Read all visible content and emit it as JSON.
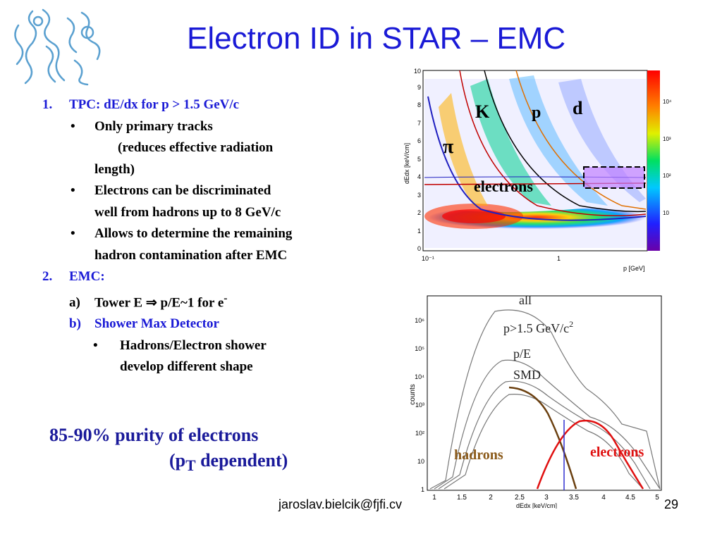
{
  "slide": {
    "title": "Electron ID in STAR – EMC",
    "page_number": "29",
    "footer_email": "jaroslav.bielcik@fjfi.cv"
  },
  "body": {
    "item1_number": "1.",
    "item1_label": "TPC: dE/dx for p > 1.5 GeV/c",
    "bullet1_line1": "Only primary tracks",
    "bullet1_line2": "(reduces effective radiation",
    "bullet1_line3": "length)",
    "bullet2_line1": "Electrons can be discriminated",
    "bullet2_line2": "well from hadrons up to 8 GeV/c",
    "bullet3_line1": "Allows to determine the remaining",
    "bullet3_line2": "hadron contamination after EMC",
    "item2_number": "2.",
    "item2_label": "EMC:",
    "sub_a_marker": "a)",
    "sub_a_text": "Tower E  ⇒ p/E~1 for e",
    "sub_a_sup": "-",
    "sub_b_marker": "b)",
    "sub_b_text": "Shower Max Detector",
    "sub_bullet_line1": "Hadrons/Electron shower",
    "sub_bullet_line2": "develop different shape",
    "bullet_char": "•"
  },
  "purity": {
    "line1": "85-90% purity of  electrons",
    "line2_pre": "(p",
    "line2_sub": "T",
    "line2_post": " dependent)"
  },
  "plot_dedx": {
    "ylabel": "dEdx [keV/cm]",
    "xlabel": "p [GeV]",
    "y_ticks": [
      "0",
      "1",
      "2",
      "3",
      "4",
      "5",
      "6",
      "7",
      "8",
      "9",
      "10"
    ],
    "x_ticks": [
      "10⁻¹",
      "1"
    ],
    "colorbar_ticks": [
      "10⁴",
      "10³",
      "10²",
      "10"
    ],
    "label_k": "K",
    "label_p": "p",
    "label_d": "d",
    "label_pi": "π",
    "label_electrons": "electrons"
  },
  "plot_spectrum": {
    "ylabel": "counts",
    "xlabel": "dEdx [keV/cm]",
    "y_ticks": [
      "1",
      "10",
      "10²",
      "10³",
      "10⁴",
      "10⁵",
      "10⁶"
    ],
    "x_ticks": [
      "1",
      "1.5",
      "2",
      "2.5",
      "3",
      "3.5",
      "4",
      "4.5",
      "5"
    ],
    "label_all": "all",
    "label_p_cut": "p>1.5 GeV/c",
    "label_p_cut_sup": "2",
    "label_pe": "p/E",
    "label_smd": "SMD",
    "label_hadrons": "hadrons",
    "label_electrons": "electrons"
  },
  "colors": {
    "title": "#1a1ad6",
    "purity": "#1a1a9a",
    "hadrons": "#8b5a1a",
    "electrons": "#e01010"
  }
}
